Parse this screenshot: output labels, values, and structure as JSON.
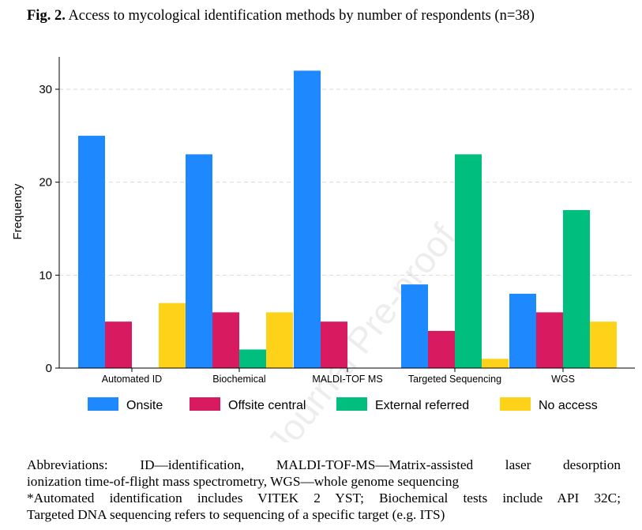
{
  "caption": {
    "label": "Fig. 2.",
    "text": "Access to mycological identification methods by number of respondents (n=38)"
  },
  "chart_data": {
    "type": "bar",
    "categories": [
      "Automated ID",
      "Biochemical",
      "MALDI-TOF MS",
      "Targeted Sequencing",
      "WGS"
    ],
    "series": [
      {
        "name": "Onsite",
        "color": "#1e88ff",
        "values": [
          25,
          23,
          32,
          9,
          8
        ]
      },
      {
        "name": "Offsite central",
        "color": "#d81b60",
        "values": [
          5,
          6,
          5,
          4,
          6
        ]
      },
      {
        "name": "External referred",
        "color": "#00be7d",
        "values": [
          0,
          2,
          0,
          23,
          17
        ]
      },
      {
        "name": "No access",
        "color": "#ffd21a",
        "values": [
          7,
          6,
          0,
          1,
          5
        ]
      }
    ],
    "ylabel": "Frequency",
    "xlabel": "",
    "ylim": [
      0,
      35
    ],
    "yticks": [
      0,
      10,
      20,
      30
    ],
    "grid": true,
    "legend": "bottom"
  },
  "watermark": "Journal Pre-proof",
  "notes": {
    "line1": "Abbreviations: ID—identification, MALDI-TOF-MS—Matrix-assisted laser desorption",
    "line2": "ionization time-of-flight mass spectrometry, WGS—whole genome sequencing",
    "line3": "*Automated identification includes VITEK 2 YST; Biochemical tests include API 32C;",
    "line4": "Targeted DNA sequencing refers to sequencing of a specific target (e.g. ITS)"
  }
}
